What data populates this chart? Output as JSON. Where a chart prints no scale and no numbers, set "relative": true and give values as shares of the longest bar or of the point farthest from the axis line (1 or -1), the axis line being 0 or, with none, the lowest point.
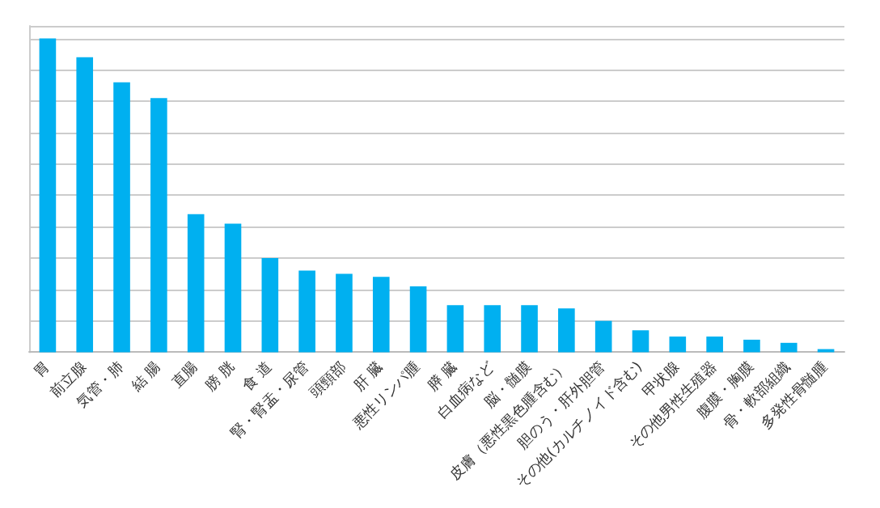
{
  "chart_data": {
    "type": "bar",
    "relative": true,
    "grid": "y",
    "color": "#00b0f0",
    "categories": [
      "胃",
      "前立腺",
      "気管・肺",
      "結 腸",
      "直腸",
      "膀 胱",
      "食 道",
      "腎・腎盂・尿管",
      "頭頸部",
      "肝 臓",
      "悪性リンパ腫",
      "膵 臓",
      "白血病など",
      "脳・髄膜",
      "皮膚（悪性黒色腫含む）",
      "胆のう・肝外胆管",
      "その他(カルチノイド含む)",
      "甲状腺",
      "その他男性生殖器",
      "腹膜・胸膜",
      "骨・軟部組織",
      "多発性骨髄腫"
    ],
    "values": [
      1,
      0.94,
      0.86,
      0.81,
      0.44,
      0.41,
      0.3,
      0.26,
      0.25,
      0.24,
      0.21,
      0.15,
      0.15,
      0.15,
      0.14,
      0.1,
      0.07,
      0.05,
      0.05,
      0.04,
      0.03,
      0.01
    ]
  }
}
